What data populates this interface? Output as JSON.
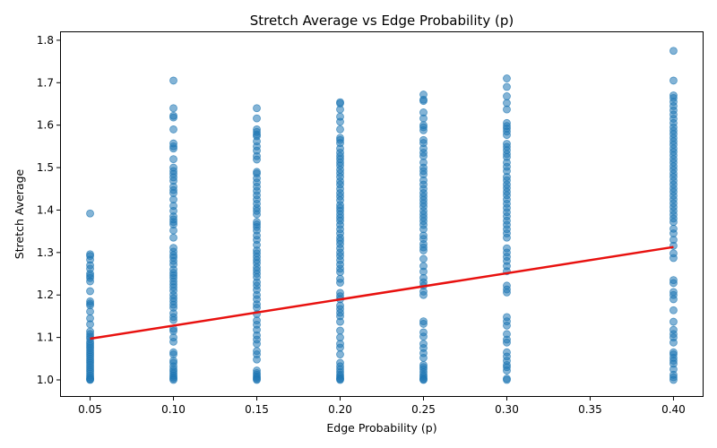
{
  "chart_data": {
    "type": "scatter",
    "title": "Stretch Average vs Edge Probability (p)",
    "xlabel": "Edge Probability (p)",
    "ylabel": "Stretch Average",
    "xlim": [
      0.0325,
      0.4175
    ],
    "ylim": [
      0.962,
      1.8188
    ],
    "x_ticks": [
      "0.05",
      "0.10",
      "0.15",
      "0.20",
      "0.25",
      "0.30",
      "0.35",
      "0.40"
    ],
    "x_tick_values": [
      0.05,
      0.1,
      0.15,
      0.2,
      0.25,
      0.3,
      0.35,
      0.4
    ],
    "y_ticks": [
      "1.0",
      "1.1",
      "1.2",
      "1.3",
      "1.4",
      "1.5",
      "1.6",
      "1.7",
      "1.8"
    ],
    "y_tick_values": [
      1.0,
      1.1,
      1.2,
      1.3,
      1.4,
      1.5,
      1.6,
      1.7,
      1.8
    ],
    "grid": false,
    "colors": {
      "points": "#1f77b4",
      "fit_line": "#e8110f"
    },
    "trend_line": {
      "x": [
        0.05,
        0.4
      ],
      "y": [
        1.097,
        1.313
      ]
    },
    "points": [
      {
        "x": 0.05,
        "ys": [
          1.392,
          1.296,
          1.292,
          1.283,
          1.27,
          1.262,
          1.25,
          1.245,
          1.24,
          1.232,
          1.209,
          1.185,
          1.18,
          1.176,
          1.161,
          1.145,
          1.131,
          1.114,
          1.108,
          1.102,
          1.097,
          1.09,
          1.085,
          1.08,
          1.075,
          1.07,
          1.065,
          1.06,
          1.055,
          1.05,
          1.045,
          1.04,
          1.035,
          1.03,
          1.025,
          1.02,
          1.015,
          1.01,
          1.006,
          1.003,
          1.001,
          1.0
        ]
      },
      {
        "x": 0.1,
        "ys": [
          1.705,
          1.64,
          1.622,
          1.618,
          1.59,
          1.557,
          1.55,
          1.545,
          1.52,
          1.5,
          1.492,
          1.485,
          1.477,
          1.469,
          1.455,
          1.447,
          1.44,
          1.425,
          1.41,
          1.398,
          1.385,
          1.378,
          1.372,
          1.366,
          1.352,
          1.335,
          1.311,
          1.302,
          1.294,
          1.288,
          1.28,
          1.272,
          1.26,
          1.252,
          1.246,
          1.24,
          1.232,
          1.225,
          1.218,
          1.21,
          1.2,
          1.192,
          1.185,
          1.177,
          1.17,
          1.157,
          1.148,
          1.141,
          1.12,
          1.115,
          1.1,
          1.09,
          1.065,
          1.06,
          1.045,
          1.04,
          1.032,
          1.025,
          1.02,
          1.015,
          1.01,
          1.006,
          1.003,
          1.0
        ]
      },
      {
        "x": 0.15,
        "ys": [
          1.64,
          1.616,
          1.59,
          1.584,
          1.578,
          1.574,
          1.562,
          1.55,
          1.54,
          1.527,
          1.519,
          1.49,
          1.486,
          1.475,
          1.465,
          1.455,
          1.445,
          1.435,
          1.425,
          1.415,
          1.405,
          1.398,
          1.39,
          1.372,
          1.366,
          1.36,
          1.352,
          1.34,
          1.33,
          1.318,
          1.305,
          1.298,
          1.29,
          1.282,
          1.275,
          1.265,
          1.258,
          1.25,
          1.242,
          1.23,
          1.222,
          1.212,
          1.2,
          1.19,
          1.178,
          1.17,
          1.155,
          1.14,
          1.13,
          1.118,
          1.105,
          1.095,
          1.085,
          1.068,
          1.06,
          1.048,
          1.022,
          1.016,
          1.012,
          1.008,
          1.005,
          1.002,
          1.0
        ]
      },
      {
        "x": 0.2,
        "ys": [
          1.654,
          1.651,
          1.637,
          1.62,
          1.608,
          1.59,
          1.57,
          1.565,
          1.558,
          1.545,
          1.535,
          1.527,
          1.52,
          1.512,
          1.505,
          1.495,
          1.487,
          1.478,
          1.468,
          1.46,
          1.45,
          1.44,
          1.432,
          1.423,
          1.412,
          1.405,
          1.398,
          1.39,
          1.382,
          1.375,
          1.365,
          1.355,
          1.345,
          1.335,
          1.328,
          1.32,
          1.31,
          1.3,
          1.292,
          1.282,
          1.272,
          1.262,
          1.254,
          1.238,
          1.229,
          1.205,
          1.197,
          1.19,
          1.175,
          1.167,
          1.158,
          1.15,
          1.137,
          1.116,
          1.1,
          1.085,
          1.076,
          1.06,
          1.04,
          1.032,
          1.025,
          1.018,
          1.012,
          1.008,
          1.004,
          1.002,
          1.0
        ]
      },
      {
        "x": 0.25,
        "ys": [
          1.672,
          1.66,
          1.657,
          1.63,
          1.616,
          1.6,
          1.595,
          1.588,
          1.565,
          1.558,
          1.545,
          1.535,
          1.527,
          1.512,
          1.5,
          1.492,
          1.484,
          1.47,
          1.46,
          1.45,
          1.44,
          1.432,
          1.424,
          1.416,
          1.408,
          1.398,
          1.39,
          1.382,
          1.374,
          1.365,
          1.355,
          1.34,
          1.332,
          1.32,
          1.312,
          1.305,
          1.285,
          1.268,
          1.255,
          1.24,
          1.23,
          1.222,
          1.208,
          1.2,
          1.138,
          1.132,
          1.112,
          1.102,
          1.085,
          1.075,
          1.063,
          1.052,
          1.035,
          1.03,
          1.025,
          1.018,
          1.012,
          1.008,
          1.004,
          1.001,
          1.0
        ]
      },
      {
        "x": 0.3,
        "ys": [
          1.71,
          1.69,
          1.668,
          1.652,
          1.637,
          1.605,
          1.598,
          1.592,
          1.585,
          1.577,
          1.556,
          1.549,
          1.541,
          1.532,
          1.525,
          1.512,
          1.502,
          1.492,
          1.478,
          1.47,
          1.46,
          1.452,
          1.443,
          1.435,
          1.425,
          1.415,
          1.405,
          1.395,
          1.385,
          1.375,
          1.365,
          1.355,
          1.345,
          1.335,
          1.31,
          1.3,
          1.29,
          1.28,
          1.268,
          1.256,
          1.222,
          1.213,
          1.206,
          1.148,
          1.138,
          1.128,
          1.108,
          1.095,
          1.088,
          1.065,
          1.055,
          1.045,
          1.035,
          1.03,
          1.022,
          1.003,
          1.0
        ]
      },
      {
        "x": 0.4,
        "ys": [
          1.775,
          1.705,
          1.67,
          1.664,
          1.655,
          1.645,
          1.635,
          1.625,
          1.615,
          1.605,
          1.595,
          1.587,
          1.579,
          1.57,
          1.562,
          1.554,
          1.545,
          1.537,
          1.529,
          1.52,
          1.512,
          1.503,
          1.495,
          1.486,
          1.478,
          1.469,
          1.46,
          1.451,
          1.443,
          1.434,
          1.425,
          1.416,
          1.407,
          1.398,
          1.389,
          1.38,
          1.372,
          1.356,
          1.345,
          1.33,
          1.316,
          1.298,
          1.287,
          1.235,
          1.228,
          1.207,
          1.2,
          1.19,
          1.164,
          1.137,
          1.118,
          1.108,
          1.1,
          1.088,
          1.065,
          1.06,
          1.052,
          1.045,
          1.038,
          1.025,
          1.012,
          1.006,
          1.0
        ]
      }
    ]
  }
}
